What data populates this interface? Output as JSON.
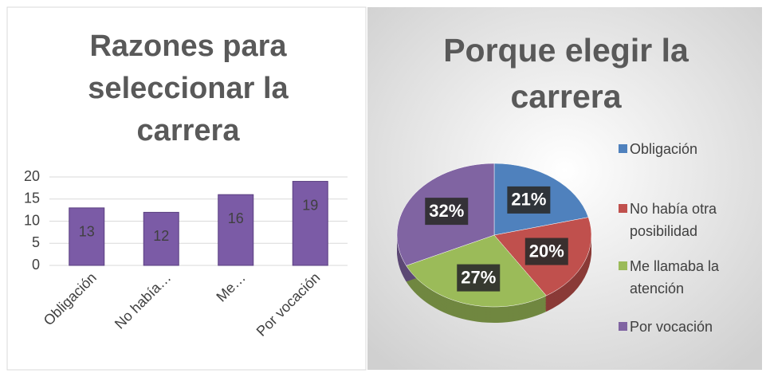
{
  "chart_data": [
    {
      "type": "bar",
      "title": "Razones para seleccionar la carrera",
      "categories": [
        "Obligación",
        "No había…",
        "Me…",
        "Por vocación"
      ],
      "values": [
        13,
        12,
        16,
        19
      ],
      "color": "#7b5ba6",
      "ylim": [
        0,
        20
      ],
      "yticks": [
        0,
        5,
        10,
        15,
        20
      ],
      "grid": true
    },
    {
      "type": "pie",
      "title": "Porque elegir la carrera",
      "categories": [
        "Obligación",
        "No había otra posibilidad",
        "Me llamaba la atención",
        "Por vocación"
      ],
      "values": [
        21,
        20,
        27,
        32
      ],
      "value_labels": [
        "21%",
        "20%",
        "27%",
        "32%"
      ],
      "colors": [
        "#4f81bd",
        "#c0504d",
        "#9bbb59",
        "#8064a2"
      ],
      "legend": "right"
    }
  ]
}
